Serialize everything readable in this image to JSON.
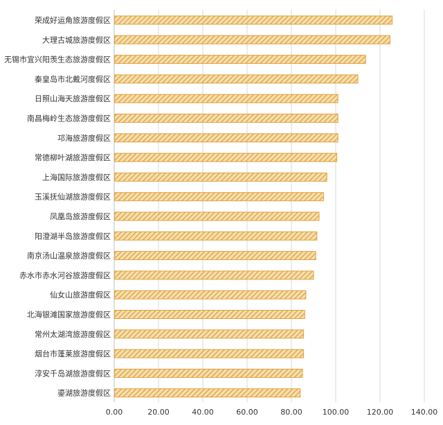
{
  "chart_data": {
    "type": "bar",
    "orientation": "horizontal",
    "title": "",
    "xlabel": "",
    "ylabel": "",
    "categories": [
      "荣成好运角旅游度假区",
      "大理古城旅游度假区",
      "无锡市宜兴阳羡生态旅游度假区",
      "秦皇岛市北戴河度假区",
      "日照山海天旅游度假区",
      "南昌梅岭生态旅游度假区",
      "邛海旅游度假区",
      "常德柳叶湖旅游度假区",
      "上海国际旅游度假区",
      "玉溪抚仙湖旅游度假区",
      "凤凰岛旅游度假区",
      "阳澄湖半岛旅游度假区",
      "南京汤山温泉旅游度假区",
      "赤水市赤水河谷旅游度假区",
      "仙女山旅游度假区",
      "北海银滩国家旅游度假区",
      "常州太湖湾旅游度假区",
      "烟台市蓬莱旅游度假区",
      "淳安千岛湖旅游度假区",
      "鎏湖旅游度假区"
    ],
    "values": [
      125.5,
      124.5,
      113.5,
      110.0,
      101.0,
      101.0,
      101.0,
      100.5,
      96.0,
      94.5,
      92.5,
      91.5,
      91.0,
      90.0,
      86.5,
      86.0,
      85.5,
      85.5,
      85.0,
      84.0
    ],
    "xlim": [
      0,
      140
    ],
    "x_ticks": [
      "0.00",
      "20.00",
      "40.00",
      "60.00",
      "80.00",
      "100.00",
      "120.00",
      "140.00"
    ],
    "grid": "vertical",
    "legend": "none",
    "colors": {
      "bar_fill": "#f5deb0",
      "bar_stripe": "#e0a23a",
      "bar_border": "#e0a23a",
      "grid": "#d9d9d9",
      "text": "#333333"
    }
  }
}
